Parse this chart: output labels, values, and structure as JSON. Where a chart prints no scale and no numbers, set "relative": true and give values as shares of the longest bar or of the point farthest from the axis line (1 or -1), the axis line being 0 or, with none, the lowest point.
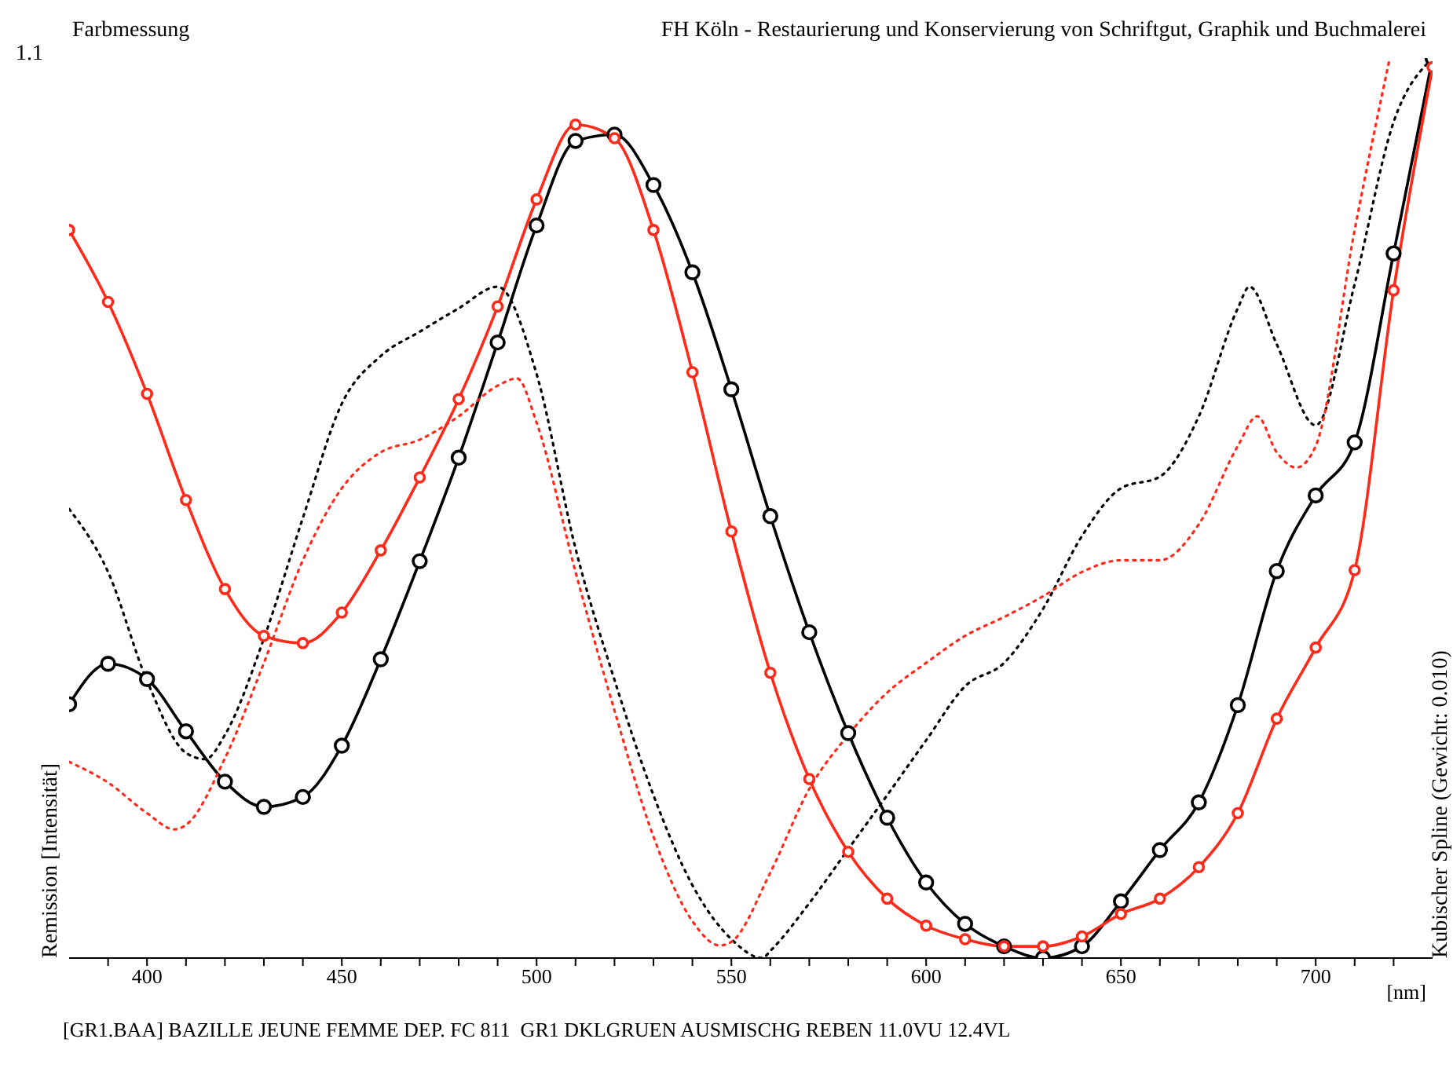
{
  "chart_data": {
    "type": "line",
    "title": "Farbmessung",
    "subtitle": "FH Köln - Restaurierung und Konservierung von Schriftgut, Graphik und Buchmalerei",
    "xlabel": "[nm]",
    "ylabel": "Remission [Intensität]",
    "y2label": "Kubischer Spline (Gewicht: 0.010)",
    "annotations": [
      "1.1",
      "[GR1.BAA] BAZILLE JEUNE FEMME DEP. FC 811  GR1 DKLGRUEN AUSMISCHG REBEN 11.0VU 12.4VL"
    ],
    "relative": true,
    "xlim": [
      380,
      730
    ],
    "xticks": [
      {
        "value": 390,
        "label": null
      },
      400,
      {
        "value": 410,
        "label": null
      },
      {
        "value": 420,
        "label": null
      },
      {
        "value": 430,
        "label": null
      },
      {
        "value": 440,
        "label": null
      },
      450,
      {
        "value": 460,
        "label": null
      },
      {
        "value": 470,
        "label": null
      },
      {
        "value": 480,
        "label": null
      },
      {
        "value": 490,
        "label": null
      },
      500,
      {
        "value": 510,
        "label": null
      },
      {
        "value": 520,
        "label": null
      },
      {
        "value": 530,
        "label": null
      },
      {
        "value": 540,
        "label": null
      },
      550,
      {
        "value": 560,
        "label": null
      },
      {
        "value": 570,
        "label": null
      },
      {
        "value": 580,
        "label": null
      },
      {
        "value": 590,
        "label": null
      },
      600,
      {
        "value": 610,
        "label": null
      },
      {
        "value": 620,
        "label": null
      },
      {
        "value": 630,
        "label": null
      },
      {
        "value": 640,
        "label": null
      },
      650,
      {
        "value": 660,
        "label": null
      },
      {
        "value": 670,
        "label": null
      },
      {
        "value": 680,
        "label": null
      },
      {
        "value": 690,
        "label": null
      },
      700,
      {
        "value": 710,
        "label": null
      },
      {
        "value": 720,
        "label": null
      }
    ],
    "series": [
      {
        "color": "#000000",
        "marker": "circle",
        "line_style": "solid",
        "x": [
          380,
          390,
          400,
          410,
          420,
          430,
          440,
          450,
          460,
          470,
          480,
          490,
          500,
          510,
          520,
          530,
          540,
          550,
          560,
          570,
          580,
          590,
          600,
          610,
          620,
          630,
          640,
          650,
          660,
          670,
          680,
          690,
          700,
          710,
          720,
          730
        ],
        "values": [
          0.282,
          0.327,
          0.31,
          0.252,
          0.196,
          0.168,
          0.179,
          0.236,
          0.332,
          0.441,
          0.556,
          0.684,
          0.814,
          0.908,
          0.915,
          0.859,
          0.762,
          0.632,
          0.491,
          0.362,
          0.25,
          0.156,
          0.084,
          0.038,
          0.013,
          0,
          0.013,
          0.063,
          0.12,
          0.173,
          0.281,
          0.43,
          0.514,
          0.573,
          0.783,
          1
        ]
      },
      {
        "color": "#ff2a1a",
        "marker": "circle",
        "line_style": "solid",
        "x": [
          380,
          390,
          400,
          410,
          420,
          430,
          440,
          450,
          460,
          470,
          480,
          490,
          500,
          510,
          520,
          530,
          540,
          550,
          560,
          570,
          580,
          590,
          600,
          610,
          620,
          630,
          640,
          650,
          660,
          670,
          680,
          690,
          700,
          710,
          720,
          730
        ],
        "values": [
          0.809,
          0.729,
          0.627,
          0.509,
          0.41,
          0.358,
          0.35,
          0.384,
          0.453,
          0.534,
          0.621,
          0.724,
          0.843,
          0.926,
          0.911,
          0.809,
          0.651,
          0.474,
          0.317,
          0.199,
          0.118,
          0.066,
          0.036,
          0.021,
          0.013,
          0.013,
          0.024,
          0.049,
          0.066,
          0.101,
          0.161,
          0.266,
          0.345,
          0.431,
          0.742,
          0.99
        ]
      },
      {
        "color": "#000000",
        "marker": "none",
        "line_style": "dotted",
        "x": [
          380,
          390,
          400,
          410,
          415,
          420,
          430,
          440,
          450,
          460,
          470,
          480,
          490,
          500,
          510,
          520,
          530,
          540,
          550,
          558,
          560,
          570,
          580,
          590,
          600,
          610,
          620,
          630,
          640,
          650,
          660,
          670,
          680,
          683,
          690,
          700,
          710,
          720,
          730
        ],
        "values": [
          0.499,
          0.429,
          0.308,
          0.228,
          0.221,
          0.248,
          0.355,
          0.489,
          0.616,
          0.669,
          0.696,
          0.722,
          0.746,
          0.649,
          0.455,
          0.309,
          0.181,
          0.081,
          0.021,
          0,
          0.008,
          0.061,
          0.121,
          0.181,
          0.242,
          0.302,
          0.328,
          0.388,
          0.469,
          0.522,
          0.535,
          0.602,
          0.722,
          0.746,
          0.682,
          0.592,
          0.749,
          0.929,
          1
        ]
      },
      {
        "color": "#ff2a1a",
        "marker": "none",
        "line_style": "dotted",
        "x": [
          380,
          390,
          400,
          407,
          410,
          420,
          430,
          440,
          450,
          460,
          470,
          480,
          490,
          495,
          500,
          510,
          520,
          530,
          540,
          547,
          550,
          560,
          570,
          580,
          590,
          600,
          610,
          620,
          630,
          640,
          650,
          660,
          670,
          680,
          685,
          690,
          695,
          700,
          710,
          719
        ],
        "values": [
          0.218,
          0.195,
          0.161,
          0.143,
          0.148,
          0.222,
          0.328,
          0.442,
          0.522,
          0.562,
          0.576,
          0.602,
          0.636,
          0.644,
          0.595,
          0.429,
          0.275,
          0.135,
          0.041,
          0.014,
          0.018,
          0.095,
          0.188,
          0.248,
          0.295,
          0.328,
          0.358,
          0.379,
          0.402,
          0.429,
          0.442,
          0.442,
          0.482,
          0.569,
          0.602,
          0.562,
          0.545,
          0.569,
          0.809,
          1
        ]
      }
    ]
  }
}
